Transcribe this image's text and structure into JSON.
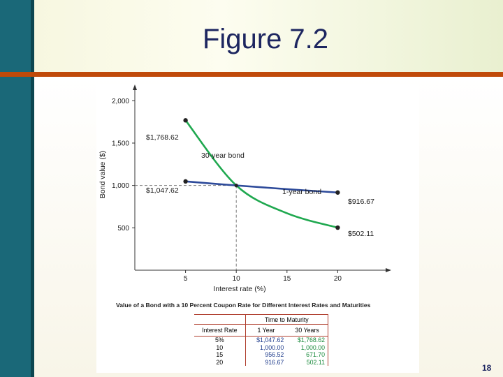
{
  "slide": {
    "title": "Figure 7.2",
    "page_number": "18"
  },
  "colors": {
    "sidebar": "#1a6878",
    "rule": "#c04a0a",
    "title": "#1d2660",
    "series_30yr": "#1fa84f",
    "series_1yr": "#2d4a9a"
  },
  "chart_data": {
    "type": "line",
    "xlabel": "Interest rate (%)",
    "ylabel": "Bond value ($)",
    "xlim": [
      0,
      25
    ],
    "ylim": [
      0,
      2200
    ],
    "x_ticks": [
      "5",
      "10",
      "15",
      "20"
    ],
    "y_ticks": [
      "500",
      "1,000",
      "1,500",
      "2,000"
    ],
    "series": [
      {
        "name": "30-year bond",
        "x": [
          5,
          10,
          15,
          20
        ],
        "values": [
          1768.62,
          1000.0,
          671.7,
          502.11
        ]
      },
      {
        "name": "1-year bond",
        "x": [
          5,
          10,
          15,
          20
        ],
        "values": [
          1047.62,
          1000.0,
          956.52,
          916.67
        ]
      }
    ],
    "annotations": {
      "p30_start": "$1,768.62",
      "p1_start": "$1,047.62",
      "p1_end": "$916.67",
      "p30_end": "$502.11"
    },
    "caption": "Value of a Bond with a 10 Percent Coupon Rate for Different Interest Rates and Maturities"
  },
  "table": {
    "group_header": "Time to Maturity",
    "columns": [
      "Interest Rate",
      "1 Year",
      "30 Years"
    ],
    "rows": [
      {
        "rate": "5%",
        "one": "$1,047.62",
        "thirty": "$1,768.62"
      },
      {
        "rate": "10",
        "one": "1,000.00",
        "thirty": "1,000.00"
      },
      {
        "rate": "15",
        "one": "956.52",
        "thirty": "671.70"
      },
      {
        "rate": "20",
        "one": "916.67",
        "thirty": "502.11"
      }
    ]
  }
}
